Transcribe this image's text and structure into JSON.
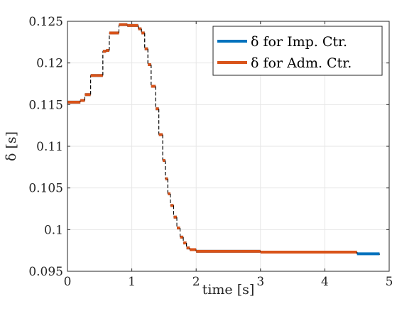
{
  "chart_data": {
    "type": "line",
    "title": "",
    "xlabel": "time [s]",
    "ylabel": "δ [s]",
    "xlim": [
      0,
      5
    ],
    "ylim": [
      0.095,
      0.125
    ],
    "grid": true,
    "legend_position": "top-right",
    "x_ticks": [
      "0",
      "1",
      "2",
      "3",
      "4",
      "5"
    ],
    "y_ticks": [
      "0.095",
      "0.1",
      "0.105",
      "0.11",
      "0.115",
      "0.12",
      "0.125"
    ],
    "series": [
      {
        "name": "δ for Imp. Ctr.",
        "color": "#0072BD",
        "style": "step",
        "x": [
          0.0,
          0.2,
          0.27,
          0.36,
          0.45,
          0.55,
          0.6,
          0.65,
          0.76,
          0.8,
          0.9,
          0.93,
          1.1,
          1.15,
          1.2,
          1.25,
          1.3,
          1.37,
          1.42,
          1.48,
          1.52,
          1.56,
          1.6,
          1.65,
          1.7,
          1.75,
          1.8,
          1.85,
          1.9,
          2.0,
          2.7,
          3.0,
          4.5,
          4.85
        ],
        "y": [
          0.1153,
          0.1155,
          0.1162,
          0.1185,
          0.1185,
          0.1214,
          0.1215,
          0.1236,
          0.1236,
          0.1246,
          0.1246,
          0.1245,
          0.1241,
          0.1236,
          0.1217,
          0.1198,
          0.1172,
          0.1145,
          0.1114,
          0.1083,
          0.1061,
          0.1043,
          0.1029,
          0.1015,
          0.1002,
          0.0991,
          0.0984,
          0.0978,
          0.0976,
          0.0974,
          0.0974,
          0.0973,
          0.0971,
          0.097
        ]
      },
      {
        "name": "δ for Adm. Ctr.",
        "color": "#D95319",
        "style": "step",
        "x": [
          0.0,
          0.2,
          0.27,
          0.36,
          0.45,
          0.55,
          0.6,
          0.65,
          0.76,
          0.8,
          0.9,
          0.93,
          1.1,
          1.15,
          1.2,
          1.25,
          1.3,
          1.37,
          1.42,
          1.48,
          1.52,
          1.56,
          1.6,
          1.65,
          1.7,
          1.75,
          1.8,
          1.85,
          1.9,
          2.0,
          2.7,
          3.0,
          4.5
        ],
        "y": [
          0.1153,
          0.1155,
          0.1162,
          0.1185,
          0.1185,
          0.1214,
          0.1215,
          0.1236,
          0.1236,
          0.1246,
          0.1246,
          0.1245,
          0.1241,
          0.1236,
          0.1217,
          0.1198,
          0.1172,
          0.1145,
          0.1114,
          0.1083,
          0.1061,
          0.1043,
          0.1029,
          0.1015,
          0.1002,
          0.0991,
          0.0984,
          0.0978,
          0.0976,
          0.0974,
          0.0974,
          0.0973,
          0.0971
        ]
      }
    ]
  }
}
